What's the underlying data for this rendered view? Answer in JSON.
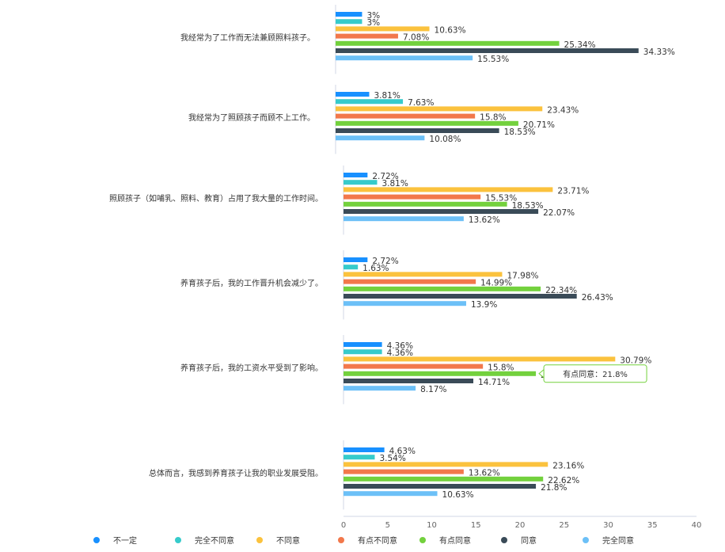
{
  "chart_data": {
    "type": "bar",
    "orientation": "horizontal",
    "unit_suffix": "%",
    "categories": [
      "我经常为了工作而无法兼顾照料孩子。",
      "我经常为了照顾孩子而顾不上工作。",
      "照顾孩子（如哺乳、照料、教育）占用了我大量的工作时间。",
      "养育孩子后，我的工作晋升机会减少了。",
      "养育孩子后，我的工资水平受到了影响。",
      "总体而言，我感到养育孩子让我的职业发展受阻。"
    ],
    "series": [
      {
        "name": "不一定",
        "color": "#1890ff",
        "values": [
          3,
          3.81,
          2.72,
          2.72,
          4.36,
          4.63
        ]
      },
      {
        "name": "完全不同意",
        "color": "#36cbcb",
        "values": [
          3,
          7.63,
          3.81,
          1.63,
          4.36,
          3.54
        ]
      },
      {
        "name": "不同意",
        "color": "#fbc23d",
        "values": [
          10.63,
          23.43,
          23.71,
          17.98,
          30.79,
          23.16
        ]
      },
      {
        "name": "有点不同意",
        "color": "#f2784b",
        "values": [
          7.08,
          15.8,
          15.53,
          14.99,
          15.8,
          13.62
        ]
      },
      {
        "name": "有点同意",
        "color": "#73d13d",
        "values": [
          25.34,
          20.71,
          18.53,
          22.34,
          21.8,
          22.62
        ]
      },
      {
        "name": "同意",
        "color": "#3a4b58",
        "values": [
          34.33,
          18.53,
          22.07,
          26.43,
          14.71,
          21.8
        ]
      },
      {
        "name": "完全同意",
        "color": "#6cc0f7",
        "values": [
          15.53,
          10.08,
          13.62,
          13.9,
          8.17,
          10.63
        ]
      }
    ],
    "xlim": [
      0,
      40
    ],
    "xticks": [
      0,
      5,
      10,
      15,
      20,
      25,
      30,
      35,
      40
    ],
    "grid": false,
    "legend_position": "bottom",
    "tooltip": {
      "series": "有点同意",
      "category_index": 4,
      "text": "有点同意：21.8%"
    }
  }
}
